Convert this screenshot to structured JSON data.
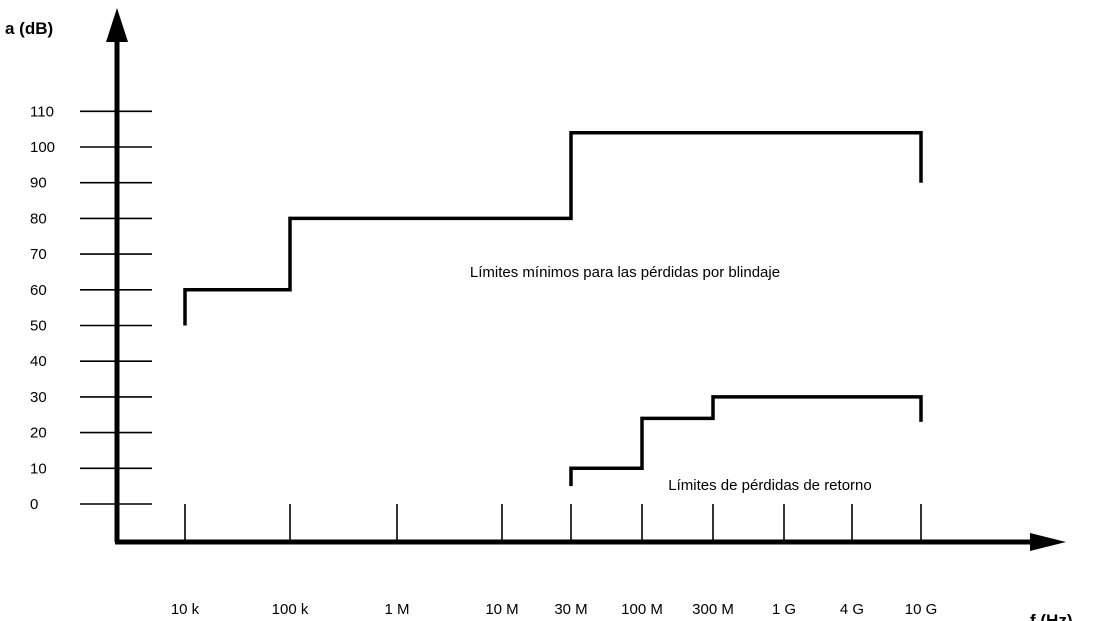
{
  "chart_data": {
    "type": "line",
    "title": "",
    "ylabel": "a (dB)",
    "xlabel": "f (Hz)",
    "ylim": [
      0,
      110
    ],
    "yticks": [
      0,
      10,
      20,
      30,
      40,
      50,
      60,
      70,
      80,
      90,
      100,
      110
    ],
    "ytick_labels": [
      "0",
      "10",
      "20",
      "30",
      "40",
      "50",
      "60",
      "70",
      "80",
      "90",
      "100",
      "110"
    ],
    "x_categories": [
      "10 k",
      "100 k",
      "1 M",
      "10 M",
      "30 M",
      "100 M",
      "300 M",
      "1 G",
      "4 G",
      "10 G"
    ],
    "grid": false,
    "legend": "none",
    "series": [
      {
        "label": "Límites mínimos para las pérdidas por blindaje",
        "points": [
          {
            "x": "10 k",
            "y": 50
          },
          {
            "x": "10 k",
            "y": 60
          },
          {
            "x": "100 k",
            "y": 60
          },
          {
            "x": "100 k",
            "y": 80
          },
          {
            "x": "30 M",
            "y": 80
          },
          {
            "x": "30 M",
            "y": 104
          },
          {
            "x": "10 G",
            "y": 104
          },
          {
            "x": "10 G",
            "y": 90
          }
        ]
      },
      {
        "label": "Límites de pérdidas de retorno",
        "points": [
          {
            "x": "30 M",
            "y": 5
          },
          {
            "x": "30 M",
            "y": 10
          },
          {
            "x": "100 M",
            "y": 10
          },
          {
            "x": "100 M",
            "y": 24
          },
          {
            "x": "300 M",
            "y": 24
          },
          {
            "x": "300 M",
            "y": 30
          },
          {
            "x": "10 G",
            "y": 30
          },
          {
            "x": "10 G",
            "y": 23
          }
        ]
      }
    ]
  }
}
